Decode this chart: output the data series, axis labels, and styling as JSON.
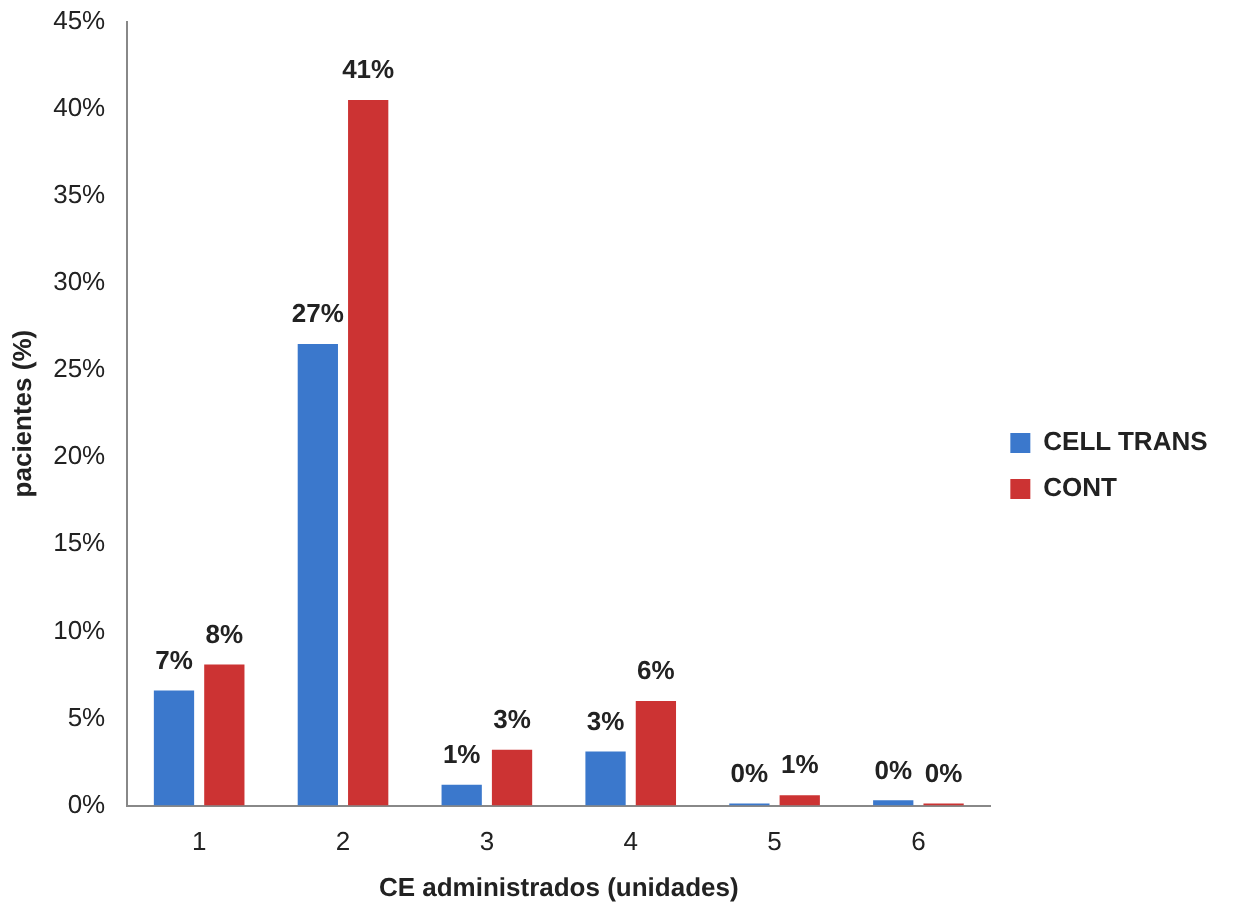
{
  "chart_data": {
    "type": "bar",
    "xlabel": "CE administrados (unidades)",
    "ylabel": "pacientes (%)",
    "categories": [
      "1",
      "2",
      "3",
      "4",
      "5",
      "6"
    ],
    "series": [
      {
        "name": "CELL TRANS",
        "color": "#3b78cc",
        "values": [
          6.6,
          26.5,
          1.2,
          3.1,
          0,
          0.3
        ],
        "value_labels": [
          "7%",
          "27%",
          "1%",
          "3%",
          "0%",
          "0%"
        ]
      },
      {
        "name": "CONT",
        "color": "#cc3333",
        "values": [
          8.1,
          40.5,
          3.2,
          6,
          0.6,
          0
        ],
        "value_labels": [
          "8%",
          "41%",
          "3%",
          "6%",
          "1%",
          "0%"
        ]
      }
    ],
    "ylim": [
      0,
      45
    ],
    "yticks": [
      {
        "value": 0,
        "label": "0%"
      },
      {
        "value": 5,
        "label": "5%"
      },
      {
        "value": 10,
        "label": "10%"
      },
      {
        "value": 15,
        "label": "15%"
      },
      {
        "value": 20,
        "label": "20%"
      },
      {
        "value": 25,
        "label": "25%"
      },
      {
        "value": 30,
        "label": "30%"
      },
      {
        "value": 35,
        "label": "35%"
      },
      {
        "value": 40,
        "label": "40%"
      },
      {
        "value": 45,
        "label": "45%"
      }
    ],
    "grid": false,
    "legend": "right"
  }
}
